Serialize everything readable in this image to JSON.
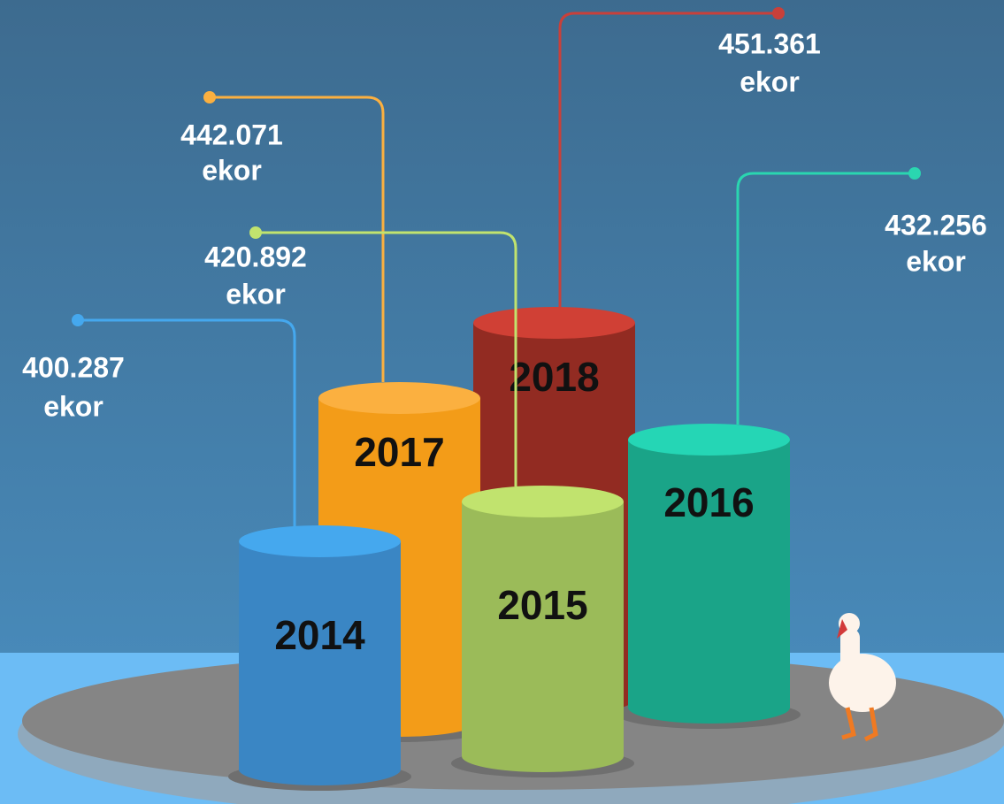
{
  "items": [
    {
      "year": "2018",
      "value": "451.361",
      "unit": "ekor"
    },
    {
      "year": "2017",
      "value": "442.071",
      "unit": "ekor"
    },
    {
      "year": "2016",
      "value": "432.256",
      "unit": "ekor"
    },
    {
      "year": "2014",
      "value": "400.287",
      "unit": "ekor"
    },
    {
      "year": "2015",
      "value": "420.892",
      "unit": "ekor"
    }
  ]
}
